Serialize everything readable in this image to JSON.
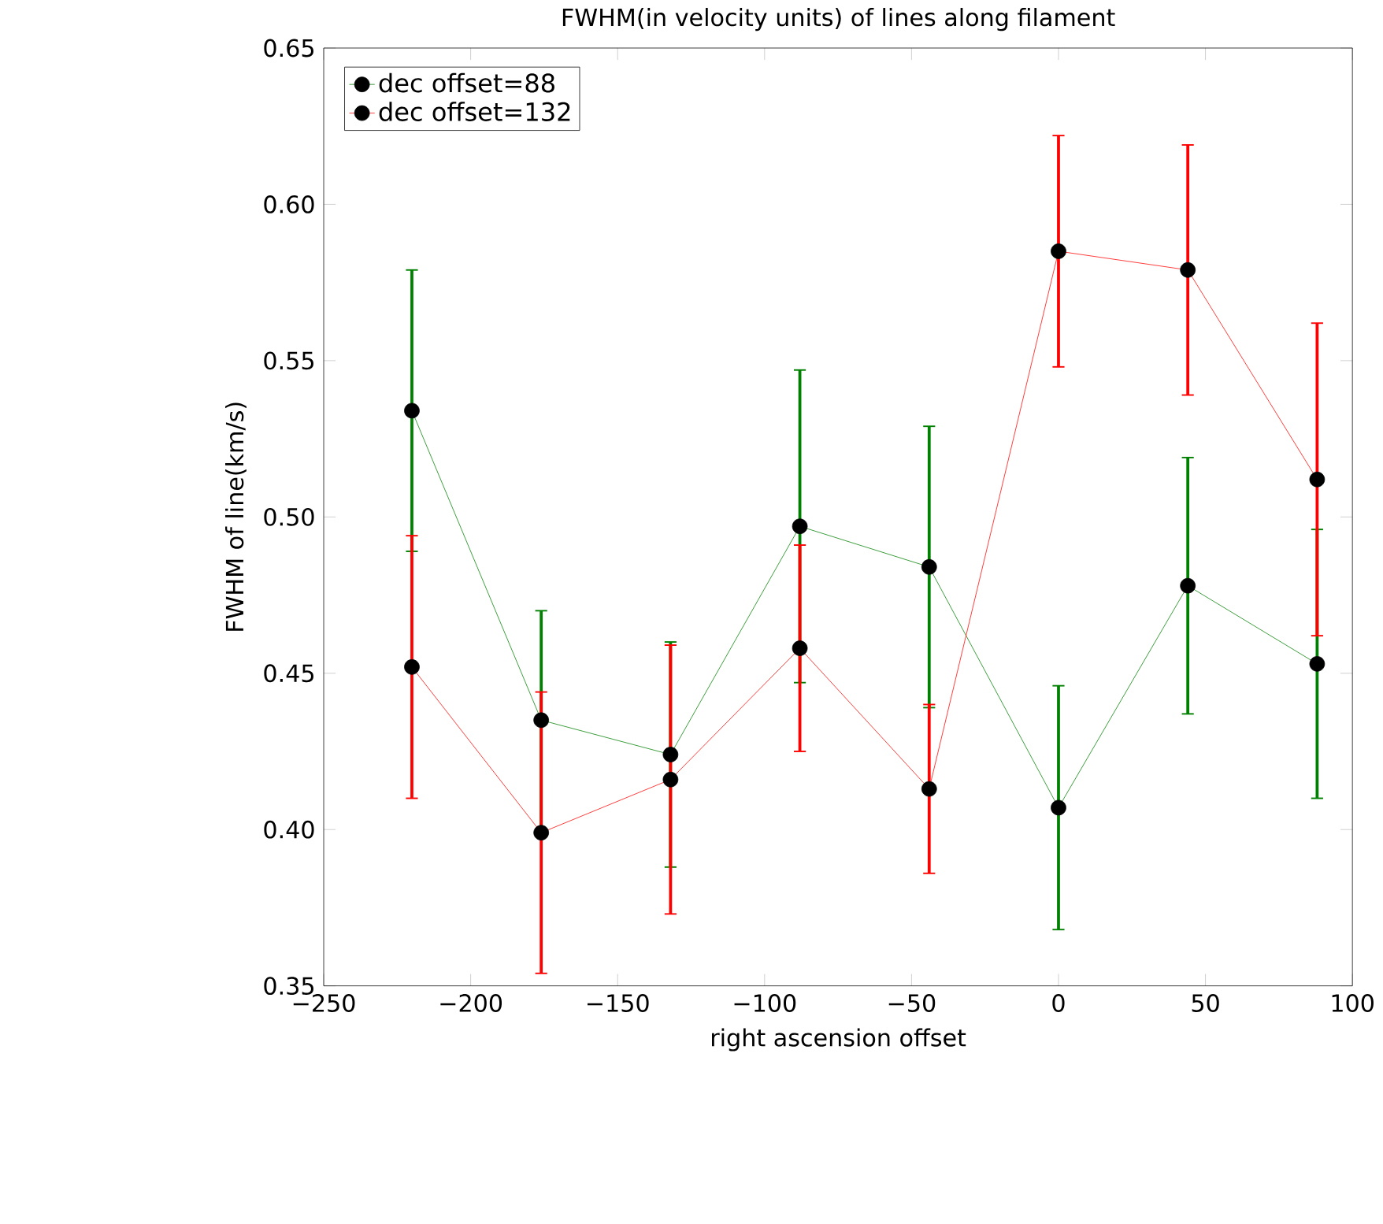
{
  "chart_data": {
    "type": "line",
    "title": "FWHM(in velocity units) of lines along filament",
    "xlabel": "right ascension offset",
    "ylabel": "FWHM of line(km/s)",
    "x": [
      -220,
      -176,
      -132,
      -88,
      -44,
      0,
      44,
      88
    ],
    "series": [
      {
        "name": "dec offset=88",
        "color": "#008000",
        "values": [
          0.534,
          0.435,
          0.424,
          0.497,
          0.484,
          0.407,
          0.478,
          0.453
        ],
        "errors": [
          0.045,
          0.035,
          0.036,
          0.05,
          0.045,
          0.039,
          0.041,
          0.043
        ]
      },
      {
        "name": "dec offset=132",
        "color": "#ff0000",
        "values": [
          0.452,
          0.399,
          0.416,
          0.458,
          0.413,
          0.585,
          0.579,
          0.512
        ],
        "errors": [
          0.042,
          0.045,
          0.043,
          0.033,
          0.027,
          0.037,
          0.04,
          0.05
        ]
      }
    ],
    "xlim": [
      -250,
      100
    ],
    "xticks": [
      {
        "value": -250,
        "label": "−250"
      },
      {
        "value": -200,
        "label": "−200"
      },
      {
        "value": -150,
        "label": "−150"
      },
      {
        "value": -100,
        "label": "−100"
      },
      {
        "value": -50,
        "label": "−50"
      },
      0,
      50,
      100
    ],
    "ylim": [
      0.35,
      0.65
    ],
    "yticks": [
      0.35,
      {
        "value": 0.4,
        "label": "0.40"
      },
      0.45,
      {
        "value": 0.5,
        "label": "0.50"
      },
      0.55,
      {
        "value": 0.6,
        "label": "0.60"
      },
      0.65
    ],
    "legend": "top left",
    "marker": "circle",
    "line_style": "solid",
    "grid": false
  }
}
